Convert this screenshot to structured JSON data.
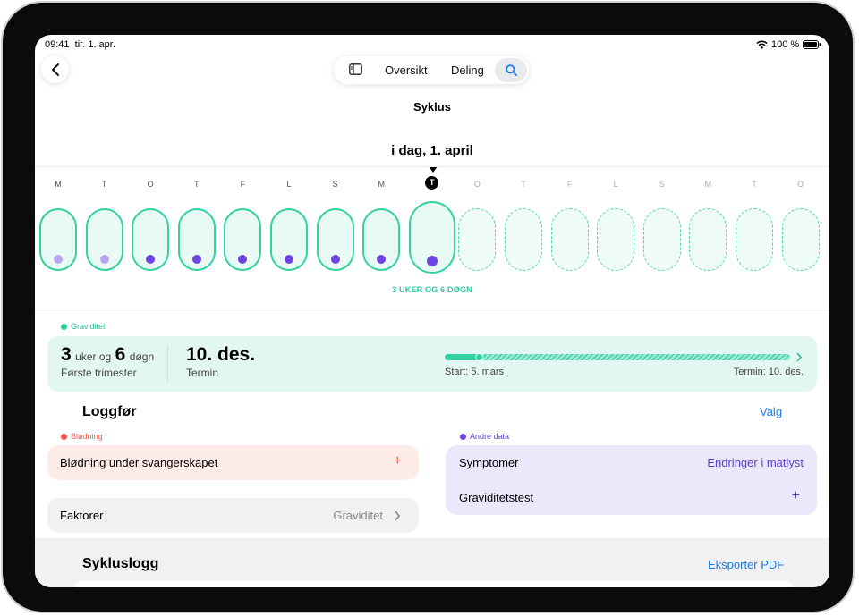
{
  "status": {
    "time": "09:41",
    "date": "tir. 1. apr.",
    "battery": "100 %"
  },
  "nav": {
    "tab_overview": "Oversikt",
    "tab_sharing": "Deling"
  },
  "page_title": "Syklus",
  "today_label": "i dag, 1. april",
  "weekdays": [
    "M",
    "T",
    "O",
    "T",
    "F",
    "L",
    "S",
    "M",
    "T",
    "O",
    "T",
    "F",
    "L",
    "S",
    "M",
    "T",
    "O"
  ],
  "today_index": 8,
  "pregnancy_duration": "3 UKER OG 6 DØGN",
  "pregnancy": {
    "section_label": "Graviditet",
    "weeks": "3",
    "weeks_unit": "uker og",
    "days": "6",
    "days_unit": "døgn",
    "trimester": "Første trimester",
    "due_date": "10. des.",
    "due_label": "Termin",
    "start_label": "Start: 5. mars",
    "end_label": "Termin: 10. des.",
    "progress": 0.1
  },
  "log": {
    "title": "Loggfør",
    "options": "Valg",
    "bleeding_label": "Blødning",
    "bleeding_item": "Blødning under svangerskapet",
    "factors_label": "Faktorer",
    "factors_value": "Graviditet",
    "other_label": "Andre data",
    "symptoms_label": "Symptomer",
    "symptoms_value": "Endringer i matlyst",
    "test_label": "Graviditetstest"
  },
  "cycle_log": {
    "title": "Sykluslogg",
    "export": "Eksporter PDF"
  },
  "colors": {
    "teal": "#34d1a2",
    "purple": "#6e45e2",
    "light_purple": "#b9a6ef",
    "red": "#ef5b4d",
    "blue": "#1c7ce0"
  }
}
